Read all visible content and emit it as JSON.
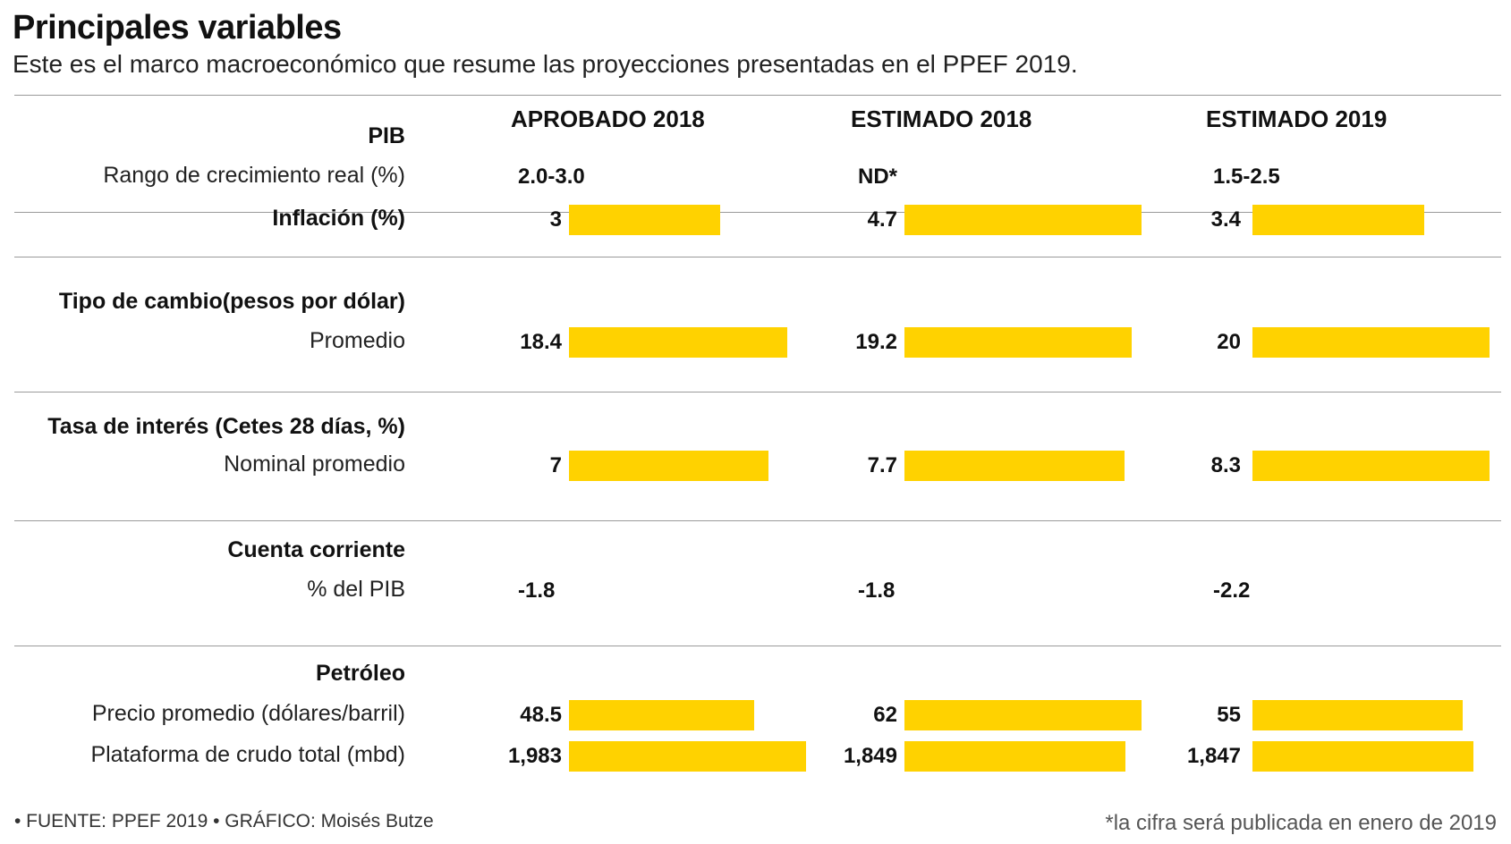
{
  "title": "Principales variables",
  "subtitle": "Este es el marco macroeconómico que resume las proyecciones presentadas en el PPEF 2019.",
  "footer": {
    "source": "• FUENTE: PPEF 2019 • GRÁFICO: Moisés Butze",
    "note": "*la cifra será publicada en enero de 2019"
  },
  "chart_data": {
    "type": "table",
    "bar_color": "#FFD200",
    "columns": [
      "APROBADO 2018",
      "ESTIMADO 2018",
      "ESTIMADO 2019"
    ],
    "sections": [
      {
        "header": "PIB",
        "rows": [
          {
            "label": "Rango de crecimiento real (%)",
            "bold": false,
            "values": [
              "2.0-3.0",
              "ND*",
              "1.5-2.5"
            ],
            "numeric": [
              null,
              null,
              null
            ],
            "bar": false
          }
        ]
      },
      {
        "header": "",
        "rows": [
          {
            "label": "Inflación (%)",
            "bold": true,
            "values": [
              "3",
              "4.7",
              "3.4"
            ],
            "numeric": [
              3,
              4.7,
              3.4
            ],
            "bar": true
          }
        ]
      },
      {
        "header": "Tipo de cambio(pesos por dólar)",
        "rows": [
          {
            "label": "Promedio",
            "bold": false,
            "values": [
              "18.4",
              "19.2",
              "20"
            ],
            "numeric": [
              18.4,
              19.2,
              20
            ],
            "bar": true
          }
        ]
      },
      {
        "header": "Tasa de interés (Cetes 28 días, %)",
        "rows": [
          {
            "label": "Nominal promedio",
            "bold": false,
            "values": [
              "7",
              "7.7",
              "8.3"
            ],
            "numeric": [
              7,
              7.7,
              8.3
            ],
            "bar": true
          }
        ]
      },
      {
        "header": "Cuenta corriente",
        "rows": [
          {
            "label": "% del PIB",
            "bold": false,
            "values": [
              "-1.8",
              "-1.8",
              "-2.2"
            ],
            "numeric": [
              -1.8,
              -1.8,
              -2.2
            ],
            "bar": false
          }
        ]
      },
      {
        "header": "Petróleo",
        "rows": [
          {
            "label": "Precio promedio (dólares/barril)",
            "bold": false,
            "values": [
              "48.5",
              "62",
              "55"
            ],
            "numeric": [
              48.5,
              62,
              55
            ],
            "bar": true
          },
          {
            "label": "Plataforma de crudo total (mbd)",
            "bold": false,
            "values": [
              "1,983",
              "1,849",
              "1,847"
            ],
            "numeric": [
              1983,
              1849,
              1847
            ],
            "bar": true
          }
        ]
      }
    ]
  }
}
